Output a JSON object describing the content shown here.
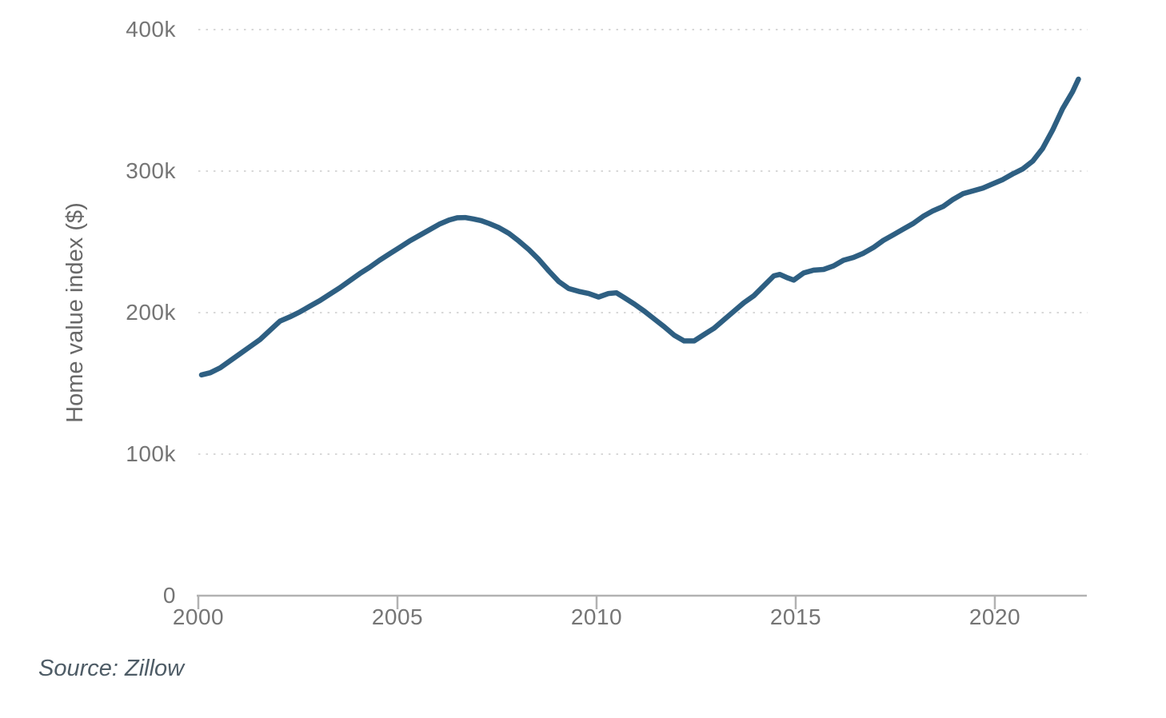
{
  "chart_data": {
    "type": "line",
    "title": "",
    "xlabel": "",
    "ylabel": "Home value index ($)",
    "source": "Source: Zillow",
    "legend": "none",
    "grid": "horizontal-dotted",
    "xlim": [
      2000,
      2022.33
    ],
    "ylim": [
      0,
      400
    ],
    "x_ticks": [
      {
        "label": "2000",
        "year": 2000
      },
      {
        "label": "2005",
        "year": 2005
      },
      {
        "label": "2010",
        "year": 2010
      },
      {
        "label": "2015",
        "year": 2015
      },
      {
        "label": "2020",
        "year": 2020
      }
    ],
    "y_ticks": [
      {
        "label": "0",
        "value": 0
      },
      {
        "label": "100k",
        "value": 100
      },
      {
        "label": "200k",
        "value": 200
      },
      {
        "label": "300k",
        "value": 300
      },
      {
        "label": "400k",
        "value": 400
      }
    ],
    "series": [
      {
        "name": "Home value index",
        "color": "#2e5f82",
        "units": "thousands of dollars",
        "points": [
          [
            2000.08,
            156
          ],
          [
            2000.3,
            157.5
          ],
          [
            2000.55,
            161
          ],
          [
            2000.8,
            166
          ],
          [
            2001.05,
            171
          ],
          [
            2001.3,
            176
          ],
          [
            2001.55,
            181
          ],
          [
            2001.8,
            187.5
          ],
          [
            2002.05,
            194
          ],
          [
            2002.3,
            197
          ],
          [
            2002.55,
            200.5
          ],
          [
            2002.8,
            204.5
          ],
          [
            2003.05,
            208.5
          ],
          [
            2003.3,
            213
          ],
          [
            2003.55,
            217.5
          ],
          [
            2003.8,
            222.5
          ],
          [
            2004.05,
            227.5
          ],
          [
            2004.3,
            232
          ],
          [
            2004.55,
            237
          ],
          [
            2004.8,
            241.5
          ],
          [
            2005.05,
            246
          ],
          [
            2005.3,
            250.5
          ],
          [
            2005.55,
            254.5
          ],
          [
            2005.8,
            258.5
          ],
          [
            2006.05,
            262.5
          ],
          [
            2006.3,
            265.5
          ],
          [
            2006.5,
            267
          ],
          [
            2006.7,
            267.2
          ],
          [
            2006.9,
            266.2
          ],
          [
            2007.1,
            265
          ],
          [
            2007.3,
            263
          ],
          [
            2007.55,
            260
          ],
          [
            2007.8,
            256
          ],
          [
            2008.05,
            250.5
          ],
          [
            2008.3,
            244.5
          ],
          [
            2008.55,
            237.5
          ],
          [
            2008.8,
            229.5
          ],
          [
            2009.05,
            222
          ],
          [
            2009.3,
            217
          ],
          [
            2009.55,
            215
          ],
          [
            2009.8,
            213.5
          ],
          [
            2010.05,
            211
          ],
          [
            2010.3,
            213.5
          ],
          [
            2010.5,
            214
          ],
          [
            2010.7,
            210.5
          ],
          [
            2010.95,
            206
          ],
          [
            2011.2,
            201
          ],
          [
            2011.45,
            195.5
          ],
          [
            2011.7,
            190
          ],
          [
            2011.95,
            184
          ],
          [
            2012.2,
            180
          ],
          [
            2012.45,
            180
          ],
          [
            2012.7,
            184.5
          ],
          [
            2012.95,
            189
          ],
          [
            2013.2,
            195
          ],
          [
            2013.45,
            201
          ],
          [
            2013.7,
            207
          ],
          [
            2013.95,
            212
          ],
          [
            2014.2,
            219
          ],
          [
            2014.45,
            226
          ],
          [
            2014.6,
            227
          ],
          [
            2014.8,
            224.5
          ],
          [
            2014.95,
            223
          ],
          [
            2015.2,
            228
          ],
          [
            2015.45,
            230
          ],
          [
            2015.7,
            230.5
          ],
          [
            2015.95,
            233
          ],
          [
            2016.2,
            237
          ],
          [
            2016.45,
            239
          ],
          [
            2016.7,
            242
          ],
          [
            2016.95,
            246
          ],
          [
            2017.2,
            251
          ],
          [
            2017.45,
            255
          ],
          [
            2017.7,
            259
          ],
          [
            2017.95,
            263
          ],
          [
            2018.2,
            268
          ],
          [
            2018.45,
            272
          ],
          [
            2018.7,
            275
          ],
          [
            2018.95,
            280
          ],
          [
            2019.2,
            284
          ],
          [
            2019.45,
            286
          ],
          [
            2019.7,
            288
          ],
          [
            2019.95,
            291
          ],
          [
            2020.2,
            294
          ],
          [
            2020.45,
            298
          ],
          [
            2020.7,
            301.5
          ],
          [
            2020.95,
            307
          ],
          [
            2021.2,
            316
          ],
          [
            2021.45,
            329
          ],
          [
            2021.7,
            344
          ],
          [
            2021.95,
            356
          ],
          [
            2022.1,
            365
          ]
        ]
      }
    ]
  },
  "colors": {
    "line": "#2e5f82",
    "tick_label": "#757575",
    "axis_title": "#686868",
    "axis_line": "#b2b2b2",
    "gridline": "#d8d8d8",
    "source_text": "#4e5c66",
    "background": "#ffffff"
  }
}
